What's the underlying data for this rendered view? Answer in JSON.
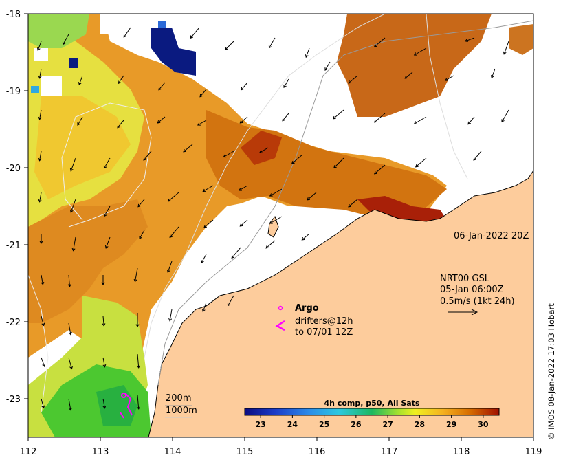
{
  "x_axis": {
    "ticks": [
      "112",
      "113",
      "114",
      "115",
      "116",
      "117",
      "118",
      "119"
    ],
    "range": [
      112,
      119
    ]
  },
  "y_axis": {
    "ticks": [
      "-18",
      "-19",
      "-20",
      "-21",
      "-22",
      "-23"
    ],
    "range": [
      -23.5,
      -18
    ]
  },
  "date_label": "06-Jan-2022 20Z",
  "current_legend": {
    "line1": "NRT00 GSL",
    "line2": "05-Jan 06:00Z",
    "line3": "0.5m/s (1kt 24h)"
  },
  "argo_legend": {
    "title": "Argo",
    "line1": "drifters@12h",
    "line2": "to 07/01 12Z"
  },
  "bathymetry_legend": {
    "shallow": "200m",
    "deep": "1000m"
  },
  "colorbar": {
    "title": "4h comp, p50, All Sats",
    "ticks": [
      "23",
      "24",
      "25",
      "26",
      "27",
      "28",
      "29",
      "30"
    ],
    "range": [
      22.5,
      30.5
    ]
  },
  "credit": "© IMOS 08-Jan-2022 17:03 Hobart",
  "colors": {
    "land": "#fdcc9c",
    "coast": "#000000",
    "cloud": "#ffffff",
    "argo": "#ff00ff"
  }
}
